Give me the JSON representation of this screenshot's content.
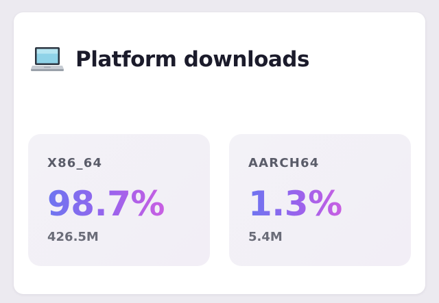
{
  "card": {
    "icon": "laptop-icon",
    "title": "Platform downloads"
  },
  "stats": [
    {
      "label": "X86_64",
      "value": "98.7%",
      "downloads": "426.5M"
    },
    {
      "label": "AARCH64",
      "value": "1.3%",
      "downloads": "5.4M"
    }
  ],
  "colors": {
    "gradient_start": "#6d75f0",
    "gradient_end": "#c95fe2",
    "title": "#1b1b2b",
    "label": "#5a5c69"
  }
}
